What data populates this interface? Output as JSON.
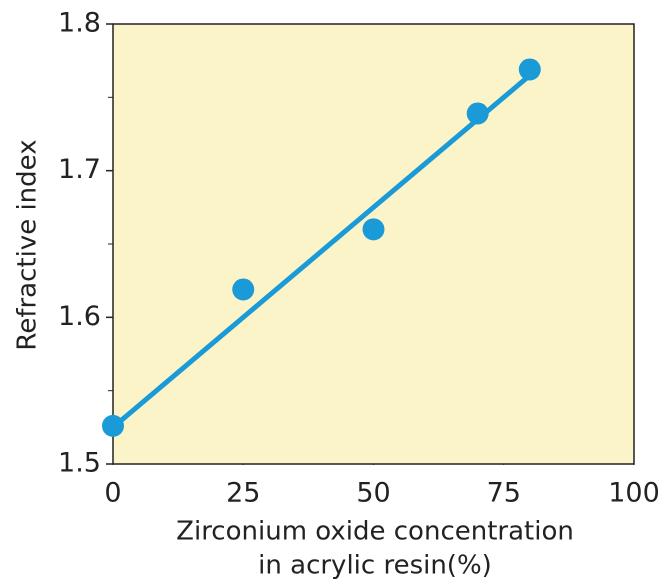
{
  "chart_data": {
    "type": "scatter",
    "xlabel": [
      "Zirconium oxide concentration",
      "in acrylic resin(%)"
    ],
    "ylabel": "Refractive index",
    "xlim": [
      0,
      100
    ],
    "xticks": [
      0,
      25,
      50,
      75,
      100
    ],
    "ylim": [
      1.5,
      1.8
    ],
    "yticks": [
      1.5,
      1.6,
      1.7,
      1.8
    ],
    "yminorticks": [
      1.55,
      1.65,
      1.75
    ],
    "background": "#fcf4c9",
    "series": [
      {
        "type": "scatter",
        "color": "#1a9ad7",
        "x": [
          0,
          25,
          50,
          70,
          80
        ],
        "values": [
          1.526,
          1.619,
          1.66,
          1.739,
          1.769
        ]
      },
      {
        "type": "line",
        "color": "#1a9ad7",
        "x": [
          0,
          80
        ],
        "values": [
          1.525,
          1.765
        ]
      }
    ]
  }
}
